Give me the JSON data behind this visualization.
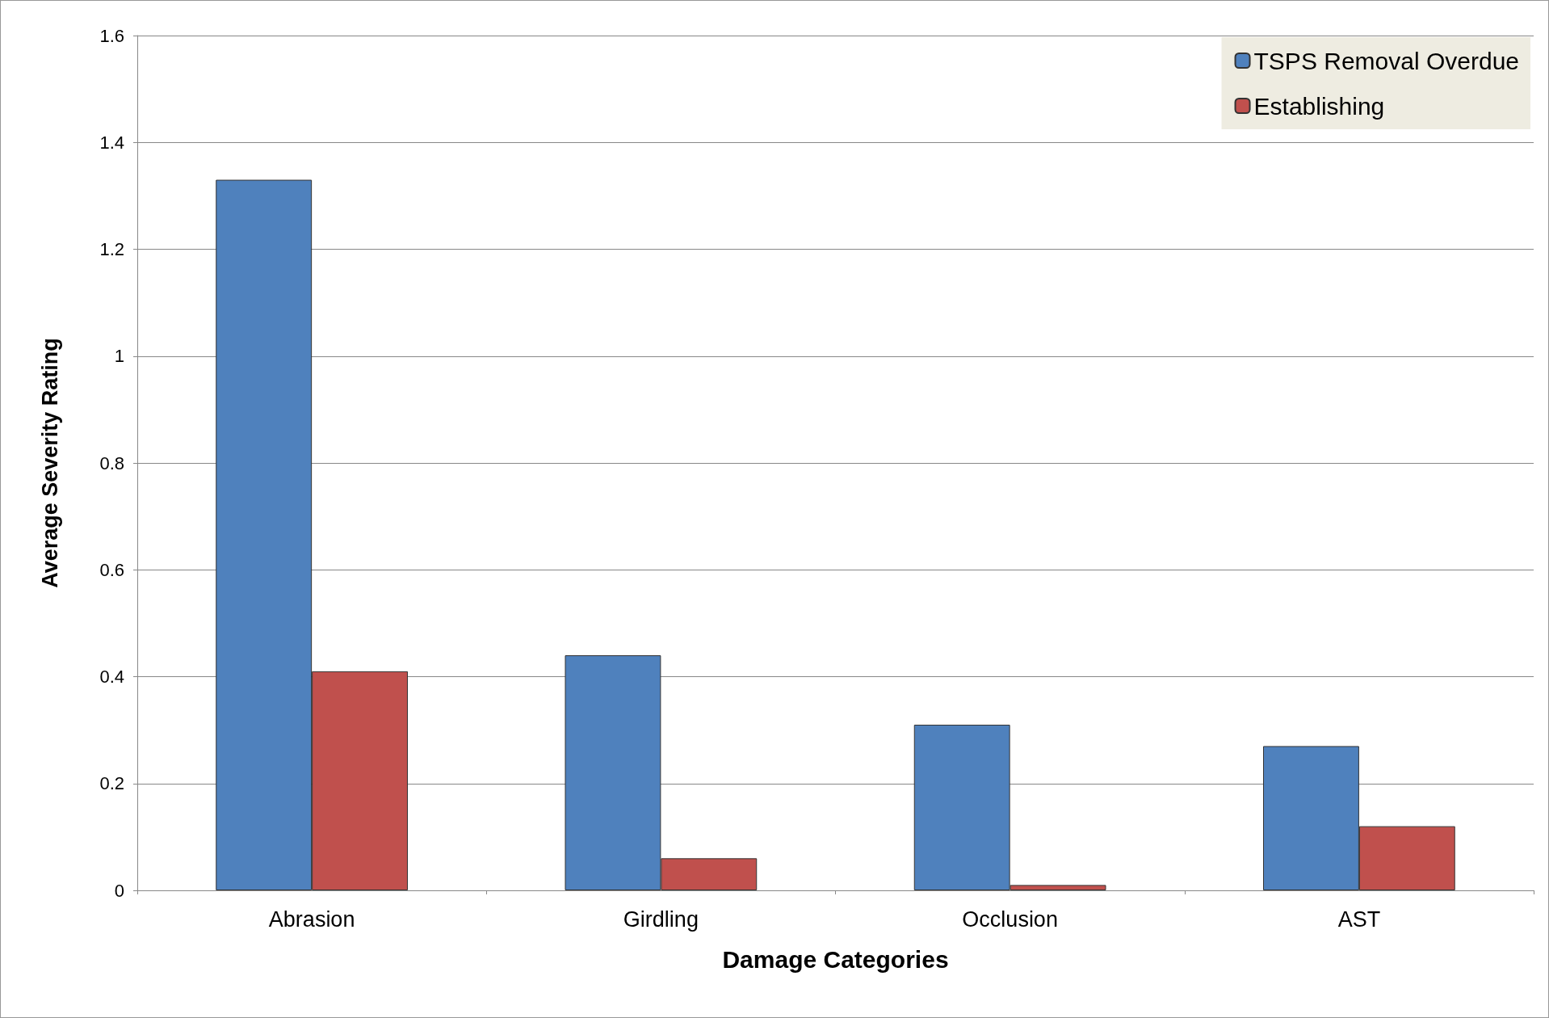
{
  "chart_data": {
    "type": "bar",
    "xlabel": "Damage Categories",
    "ylabel": "Average Severity Rating",
    "categories": [
      "Abrasion",
      "Girdling",
      "Occlusion",
      "AST"
    ],
    "series": [
      {
        "name": "TSPS Removal Overdue",
        "color": "#4f81bd",
        "values": [
          1.33,
          0.44,
          0.31,
          0.27
        ]
      },
      {
        "name": "Establishing",
        "color": "#c0504d",
        "values": [
          0.41,
          0.06,
          0.01,
          0.12
        ]
      }
    ],
    "ylim": [
      0,
      1.6
    ],
    "yticks": [
      0,
      0.2,
      0.4,
      0.6,
      0.8,
      1,
      1.2,
      1.4,
      1.6
    ],
    "grid": "y",
    "legend": "top right"
  }
}
